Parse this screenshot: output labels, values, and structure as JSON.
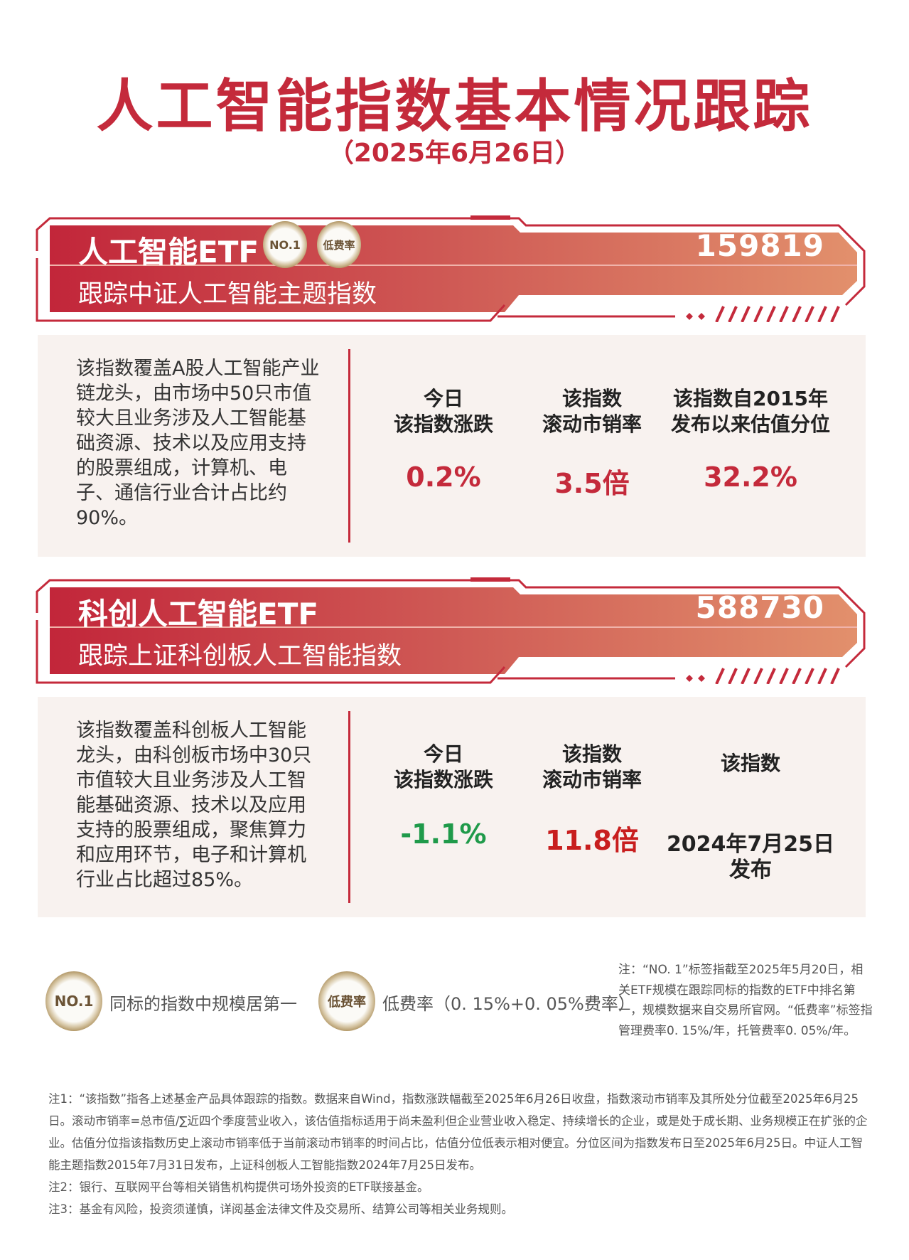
{
  "header": {
    "title": "人工智能指数基本情况跟踪",
    "date": "（2025年6月26日）"
  },
  "colors": {
    "accent": "#c42a3b",
    "positive": "#c42a3b",
    "negative": "#1f9a4a",
    "panel_bg": "#f8f2ef"
  },
  "funds": [
    {
      "name": "人工智能ETF",
      "code": "159819",
      "tracking": "跟踪中证人工智能主题指数",
      "badges": [
        "NO.1",
        "低费率"
      ],
      "description": "该指数覆盖A股人工智能产业链龙头，由市场中50只市值较大且业务涉及人工智能基础资源、技术以及应用支持的股票组成，计算机、电子、通信行业合计占比约90%。",
      "stats": [
        {
          "label1": "今日",
          "label2": "该指数涨跌",
          "value": "0.2%"
        },
        {
          "label1": "该指数",
          "label2": "滚动市销率",
          "value": "3.5倍"
        },
        {
          "label1": "该指数自2015年",
          "label2": "发布以来估值分位",
          "value": "32.2%"
        }
      ]
    },
    {
      "name": "科创人工智能ETF",
      "code": "588730",
      "tracking": "跟踪上证科创板人工智能指数",
      "description": "该指数覆盖科创板人工智能龙头，由科创板市场中30只市值较大且业务涉及人工智能基础资源、技术以及应用支持的股票组成，聚焦算力和应用环节，电子和计算机行业占比超过85%。",
      "stats": [
        {
          "label1": "今日",
          "label2": "该指数涨跌",
          "value": "-1.1%"
        },
        {
          "label1": "该指数",
          "label2": "滚动市销率",
          "value": "11.8倍"
        },
        {
          "label1": "该指数",
          "value1": "2024年7月25日",
          "value2": "发布"
        }
      ]
    }
  ],
  "legend": [
    {
      "badge": "NO.1",
      "text": "同标的指数中规模居第一"
    },
    {
      "badge": "低费率",
      "text": "低费率（0. 15%+0. 05%费率）"
    }
  ],
  "side_note": "注：“NO. 1”标签指截至2025年5月20日，相关ETF规模在跟踪同标的指数的ETF中排名第一，规模数据来自交易所官网。“低费率”标签指管理费率0. 15%/年，托管费率0. 05%/年。",
  "notes": [
    "注1：“该指数”指各上述基金产品具体跟踪的指数。数据来自Wind，指数涨跌幅截至2025年6月26日收盘，指数滚动市销率及其所处分位截至2025年6月25日。滚动市销率=总市值/∑近四个季度营业收入，该估值指标适用于尚未盈利但企业营业收入稳定、持续增长的企业，或是处于成长期、业务规模正在扩张的企业。估值分位指该指数历史上滚动市销率低于当前滚动市销率的时间占比，估值分位低表示相对便宜。分位区间为指数发布日至2025年6月25日。中证人工智能主题指数2015年7月31日发布，上证科创板人工智能指数2024年7月25日发布。",
    "注2：银行、互联网平台等相关销售机构提供可场外投资的ETF联接基金。",
    "注3：基金有风险，投资须谨慎，详阅基金法律文件及交易所、结算公司等相关业务规则。"
  ]
}
